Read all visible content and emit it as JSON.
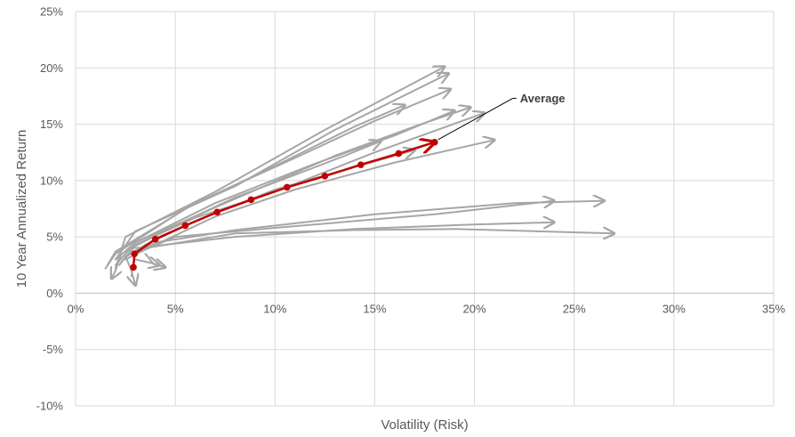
{
  "chart_data": {
    "type": "line",
    "title": "",
    "xlabel": "Volatility (Risk)",
    "ylabel": "10 Year Annualized Return",
    "xlim": [
      0,
      35
    ],
    "ylim": [
      -10,
      25
    ],
    "x_ticks": [
      "0%",
      "5%",
      "10%",
      "15%",
      "20%",
      "25%",
      "30%",
      "35%"
    ],
    "y_ticks": [
      "25%",
      "20%",
      "15%",
      "10%",
      "5%",
      "0%",
      "-5%",
      "-10%"
    ],
    "grid": true,
    "legend": "none",
    "colors": {
      "grey": "#a6a6a6",
      "average": "#c00000",
      "grid": "#d9d9d9"
    },
    "annotation": {
      "text": "Average",
      "x": 18.0,
      "y": 13.4
    },
    "series": [
      {
        "color": "#a6a6a6",
        "points": [
          [
            2.0,
            2.2
          ],
          [
            2.5,
            5.0
          ],
          [
            7.0,
            9.0
          ],
          [
            12.5,
            14.5
          ],
          [
            18.5,
            20.1
          ]
        ]
      },
      {
        "color": "#a6a6a6",
        "points": [
          [
            2.0,
            3.0
          ],
          [
            3.0,
            5.5
          ],
          [
            8.0,
            9.5
          ],
          [
            13.0,
            14.5
          ],
          [
            18.7,
            19.5
          ]
        ]
      },
      {
        "color": "#a6a6a6",
        "points": [
          [
            1.6,
            2.5
          ],
          [
            2.0,
            3.7
          ],
          [
            6.0,
            8.0
          ],
          [
            11.0,
            12.0
          ],
          [
            15.0,
            15.3
          ],
          [
            18.8,
            18.1
          ]
        ]
      },
      {
        "color": "#a6a6a6",
        "points": [
          [
            1.5,
            2.2
          ],
          [
            2.0,
            3.5
          ],
          [
            5.5,
            7.5
          ],
          [
            10.0,
            11.3
          ],
          [
            14.0,
            14.8
          ],
          [
            16.5,
            16.7
          ]
        ]
      },
      {
        "color": "#a6a6a6",
        "points": [
          [
            2.0,
            3.0
          ],
          [
            3.0,
            4.5
          ],
          [
            7.0,
            8.0
          ],
          [
            12.0,
            11.5
          ],
          [
            16.0,
            14.0
          ],
          [
            19.0,
            16.2
          ]
        ]
      },
      {
        "color": "#a6a6a6",
        "points": [
          [
            2.0,
            2.5
          ],
          [
            3.0,
            4.5
          ],
          [
            7.5,
            8.0
          ],
          [
            13.0,
            12.2
          ],
          [
            17.0,
            14.8
          ],
          [
            19.8,
            16.5
          ]
        ]
      },
      {
        "color": "#a6a6a6",
        "points": [
          [
            2.2,
            2.5
          ],
          [
            3.0,
            4.3
          ],
          [
            6.0,
            6.7
          ],
          [
            10.0,
            9.0
          ],
          [
            15.0,
            12.5
          ],
          [
            20.5,
            16.0
          ]
        ]
      },
      {
        "color": "#a6a6a6",
        "points": [
          [
            2.3,
            2.8
          ],
          [
            3.0,
            4.2
          ],
          [
            5.0,
            6.0
          ],
          [
            8.0,
            8.5
          ],
          [
            11.0,
            10.5
          ],
          [
            13.5,
            12.2
          ],
          [
            15.3,
            13.5
          ]
        ]
      },
      {
        "color": "#a6a6a6",
        "points": [
          [
            2.5,
            3.2
          ],
          [
            3.5,
            4.3
          ],
          [
            6.0,
            6.4
          ],
          [
            10.0,
            9.2
          ],
          [
            15.0,
            11.7
          ],
          [
            17.0,
            12.7
          ]
        ]
      },
      {
        "color": "#a6a6a6",
        "points": [
          [
            2.5,
            3.0
          ],
          [
            4.0,
            4.3
          ],
          [
            7.0,
            6.8
          ],
          [
            11.0,
            9.2
          ],
          [
            16.0,
            11.6
          ],
          [
            21.0,
            13.6
          ]
        ]
      },
      {
        "color": "#a6a6a6",
        "points": [
          [
            2.8,
            1.5
          ],
          [
            3.0,
            3.5
          ],
          [
            5.0,
            5.0
          ],
          [
            10.0,
            5.8
          ],
          [
            18.0,
            7.0
          ],
          [
            24.0,
            8.2
          ]
        ]
      },
      {
        "color": "#a6a6a6",
        "points": [
          [
            3.0,
            3.5
          ],
          [
            4.0,
            4.5
          ],
          [
            8.0,
            5.6
          ],
          [
            15.0,
            7.0
          ],
          [
            22.0,
            8.0
          ],
          [
            26.5,
            8.2
          ]
        ]
      },
      {
        "color": "#a6a6a6",
        "points": [
          [
            3.0,
            4.0
          ],
          [
            4.0,
            4.2
          ],
          [
            8.0,
            5.0
          ],
          [
            14.0,
            5.7
          ],
          [
            20.0,
            6.1
          ],
          [
            24.0,
            6.3
          ]
        ]
      },
      {
        "color": "#a6a6a6",
        "points": [
          [
            2.8,
            3.5
          ],
          [
            3.5,
            4.0
          ],
          [
            8.0,
            5.3
          ],
          [
            14.0,
            5.6
          ],
          [
            19.0,
            5.7
          ],
          [
            27.0,
            5.3
          ]
        ]
      },
      {
        "color": "#a6a6a6",
        "points": [
          [
            3.5,
            3.5
          ],
          [
            3.9,
            2.6
          ],
          [
            4.5,
            2.3
          ]
        ]
      },
      {
        "color": "#a6a6a6",
        "points": [
          [
            3.0,
            3.0
          ],
          [
            3.5,
            2.8
          ],
          [
            4.2,
            2.5
          ]
        ]
      },
      {
        "color": "#a6a6a6",
        "points": [
          [
            2.5,
            3.3
          ],
          [
            2.8,
            2.0
          ],
          [
            3.0,
            0.7
          ]
        ]
      },
      {
        "color": "#a6a6a6",
        "points": [
          [
            2.3,
            3.5
          ],
          [
            2.0,
            2.0
          ],
          [
            1.8,
            1.3
          ]
        ]
      },
      {
        "color": "#c00000",
        "name": "Average",
        "markers": true,
        "points": [
          [
            2.9,
            2.3
          ],
          [
            2.95,
            3.5
          ],
          [
            4.0,
            4.8
          ],
          [
            5.5,
            6.0
          ],
          [
            7.1,
            7.2
          ],
          [
            8.8,
            8.3
          ],
          [
            10.6,
            9.4
          ],
          [
            12.5,
            10.4
          ],
          [
            14.3,
            11.4
          ],
          [
            16.2,
            12.4
          ],
          [
            18.0,
            13.4
          ]
        ]
      }
    ]
  }
}
